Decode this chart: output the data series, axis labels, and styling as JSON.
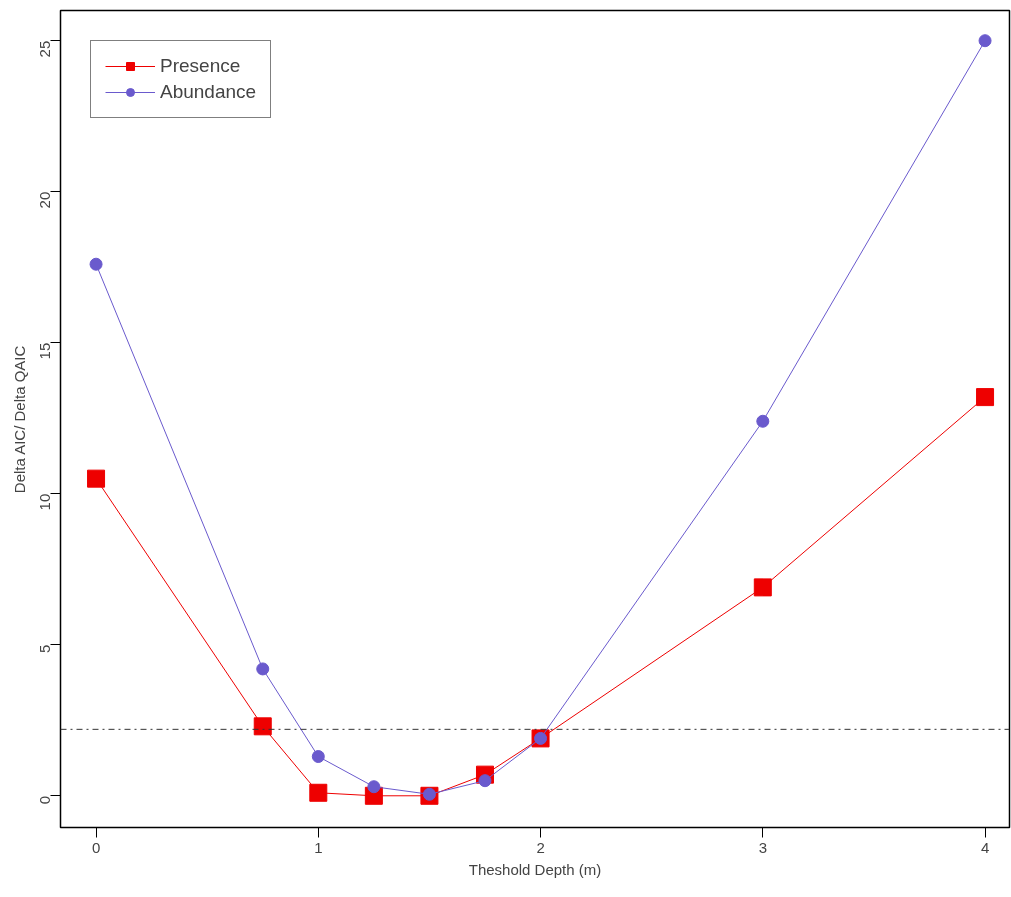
{
  "chart_data": {
    "type": "line",
    "xlabel": "Theshold Depth (m)",
    "ylabel": "Delta AIC/ Delta QAIC",
    "x": [
      0,
      0.75,
      1,
      1.25,
      1.5,
      1.75,
      2,
      3,
      4
    ],
    "series": [
      {
        "name": "Presence",
        "color": "#ee0000",
        "marker": "square",
        "values": [
          10.5,
          2.3,
          0.1,
          0,
          0,
          0.7,
          1.9,
          6.9,
          13.2
        ]
      },
      {
        "name": "Abundance",
        "color": "#6a5acd",
        "marker": "circle",
        "values": [
          17.6,
          4.2,
          1.3,
          0.3,
          0.05,
          0.5,
          1.9,
          12.4,
          25.0
        ]
      }
    ],
    "xlim": [
      -0.16,
      4.11
    ],
    "ylim": [
      -1.05,
      26.0
    ],
    "xticks": [
      0,
      1,
      2,
      3,
      4
    ],
    "yticks": [
      0,
      5,
      10,
      15,
      20,
      25
    ],
    "ref_lines": [
      {
        "axis": "y",
        "value": 2.2,
        "color": "#333333",
        "line_style": "dashdot"
      }
    ],
    "grid": false,
    "legend": "top left",
    "line_style": "solid"
  }
}
